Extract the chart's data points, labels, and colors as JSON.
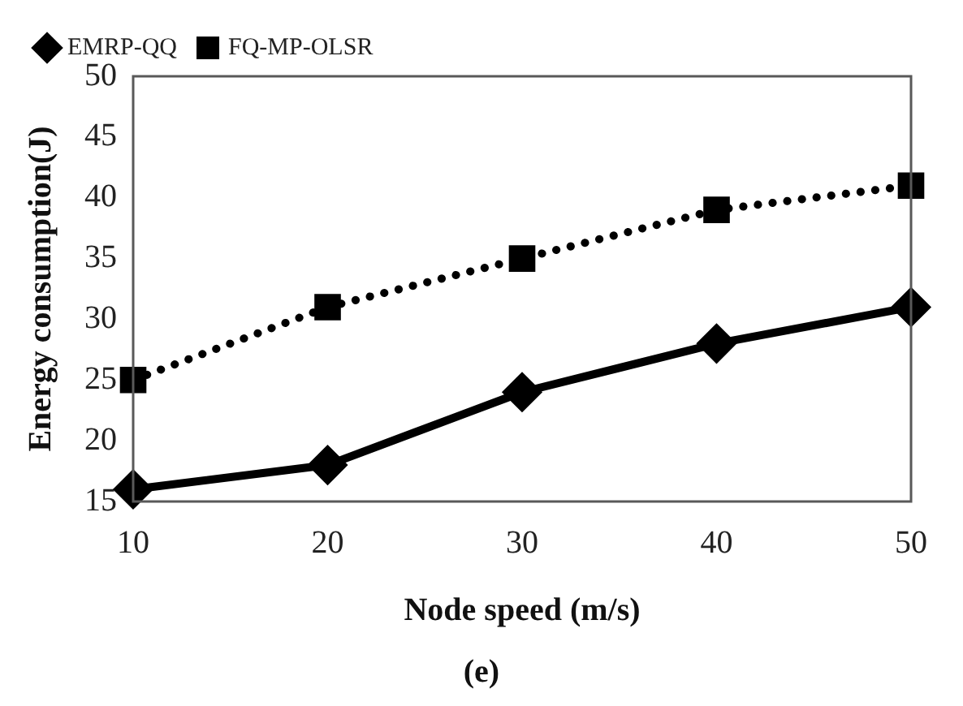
{
  "chart_data": {
    "type": "line",
    "xlabel": "Node speed (m/s)",
    "ylabel": "Energy consumption(J)",
    "annotations": [
      "(e)"
    ],
    "x": [
      10,
      20,
      30,
      40,
      50
    ],
    "xlim": [
      10,
      50
    ],
    "xticks": [
      10,
      20,
      30,
      40,
      50
    ],
    "ylim": [
      15,
      50
    ],
    "yticks": [
      15,
      20,
      25,
      30,
      35,
      40,
      45,
      50
    ],
    "grid": false,
    "legend": "top left",
    "series": [
      {
        "name": "EMRP-QQ",
        "color": "#000000",
        "values": [
          16,
          18,
          24,
          28,
          31
        ],
        "marker": "diamond",
        "line_style": "solid"
      },
      {
        "name": "FQ-MP-OLSR",
        "color": "#000000",
        "values": [
          25,
          31,
          35,
          39,
          41
        ],
        "marker": "square",
        "line_style": "dotted"
      }
    ]
  }
}
